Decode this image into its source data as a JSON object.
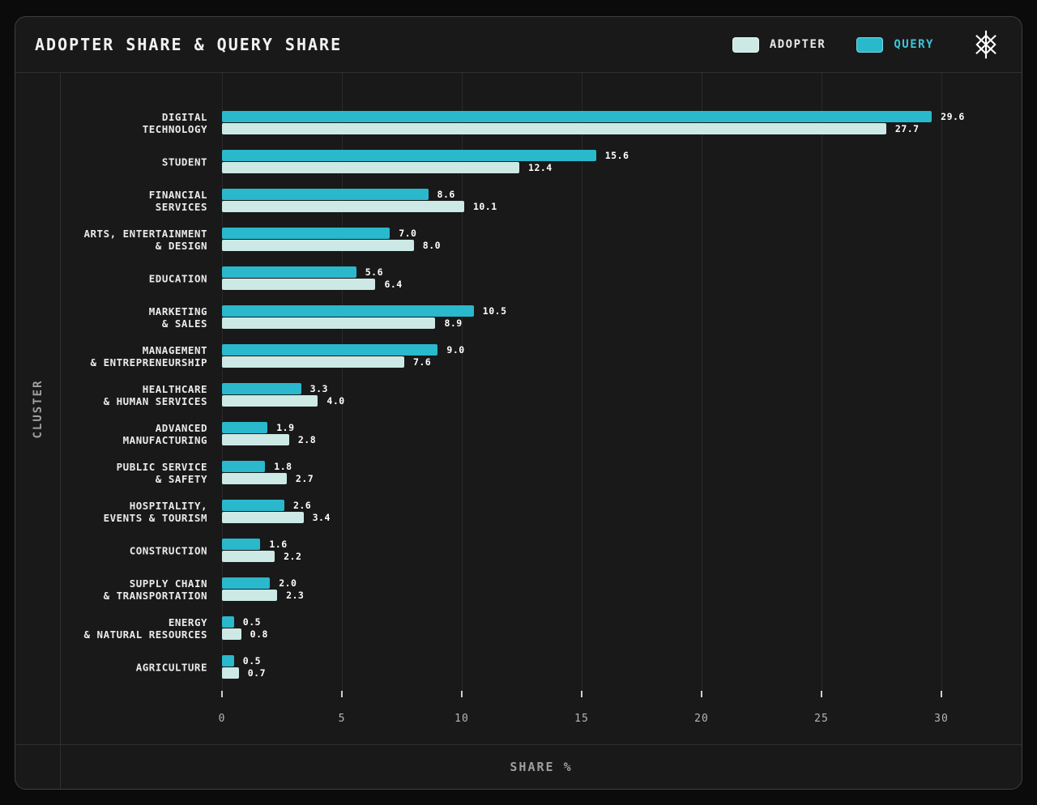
{
  "header": {
    "title": "ADOPTER SHARE & QUERY SHARE",
    "legend": [
      {
        "label": "ADOPTER",
        "color": "#cde9e5",
        "text_color": "#e8e8e8"
      },
      {
        "label": "QUERY",
        "color": "#2ab8cc",
        "text_color": "#3cc6da"
      }
    ],
    "logo": "starburst-logo"
  },
  "chart_data": {
    "type": "bar",
    "orientation": "horizontal",
    "title": "ADOPTER SHARE & QUERY SHARE",
    "xlabel": "SHARE %",
    "ylabel": "CLUSTER",
    "xlim": [
      0,
      32.7
    ],
    "xticks": [
      0,
      5,
      10,
      15,
      20,
      25,
      30
    ],
    "grid": true,
    "legend_position": "top-right",
    "categories": [
      [
        "DIGITAL",
        "TECHNOLOGY"
      ],
      [
        "STUDENT"
      ],
      [
        "FINANCIAL",
        "SERVICES"
      ],
      [
        "ARTS, ENTERTAINMENT",
        "& DESIGN"
      ],
      [
        "EDUCATION"
      ],
      [
        "MARKETING",
        "& SALES"
      ],
      [
        "MANAGEMENT",
        "& ENTREPRENEURSHIP"
      ],
      [
        "HEALTHCARE",
        "& HUMAN SERVICES"
      ],
      [
        "ADVANCED",
        "MANUFACTURING"
      ],
      [
        "PUBLIC SERVICE",
        "& SAFETY"
      ],
      [
        "HOSPITALITY,",
        "EVENTS & TOURISM"
      ],
      [
        "CONSTRUCTION"
      ],
      [
        "SUPPLY CHAIN",
        "& TRANSPORTATION"
      ],
      [
        "ENERGY",
        "& NATURAL RESOURCES"
      ],
      [
        "AGRICULTURE"
      ]
    ],
    "series": [
      {
        "name": "QUERY",
        "color": "#2ab8cc",
        "values": [
          29.6,
          15.6,
          8.6,
          7.0,
          5.6,
          10.5,
          9.0,
          3.3,
          1.9,
          1.8,
          2.6,
          1.6,
          2.0,
          0.5,
          0.5
        ]
      },
      {
        "name": "ADOPTER",
        "color": "#cde9e5",
        "values": [
          27.7,
          12.4,
          10.1,
          8.0,
          6.4,
          8.9,
          7.6,
          4.0,
          2.8,
          2.7,
          3.4,
          2.2,
          2.3,
          0.8,
          0.7
        ]
      }
    ]
  }
}
